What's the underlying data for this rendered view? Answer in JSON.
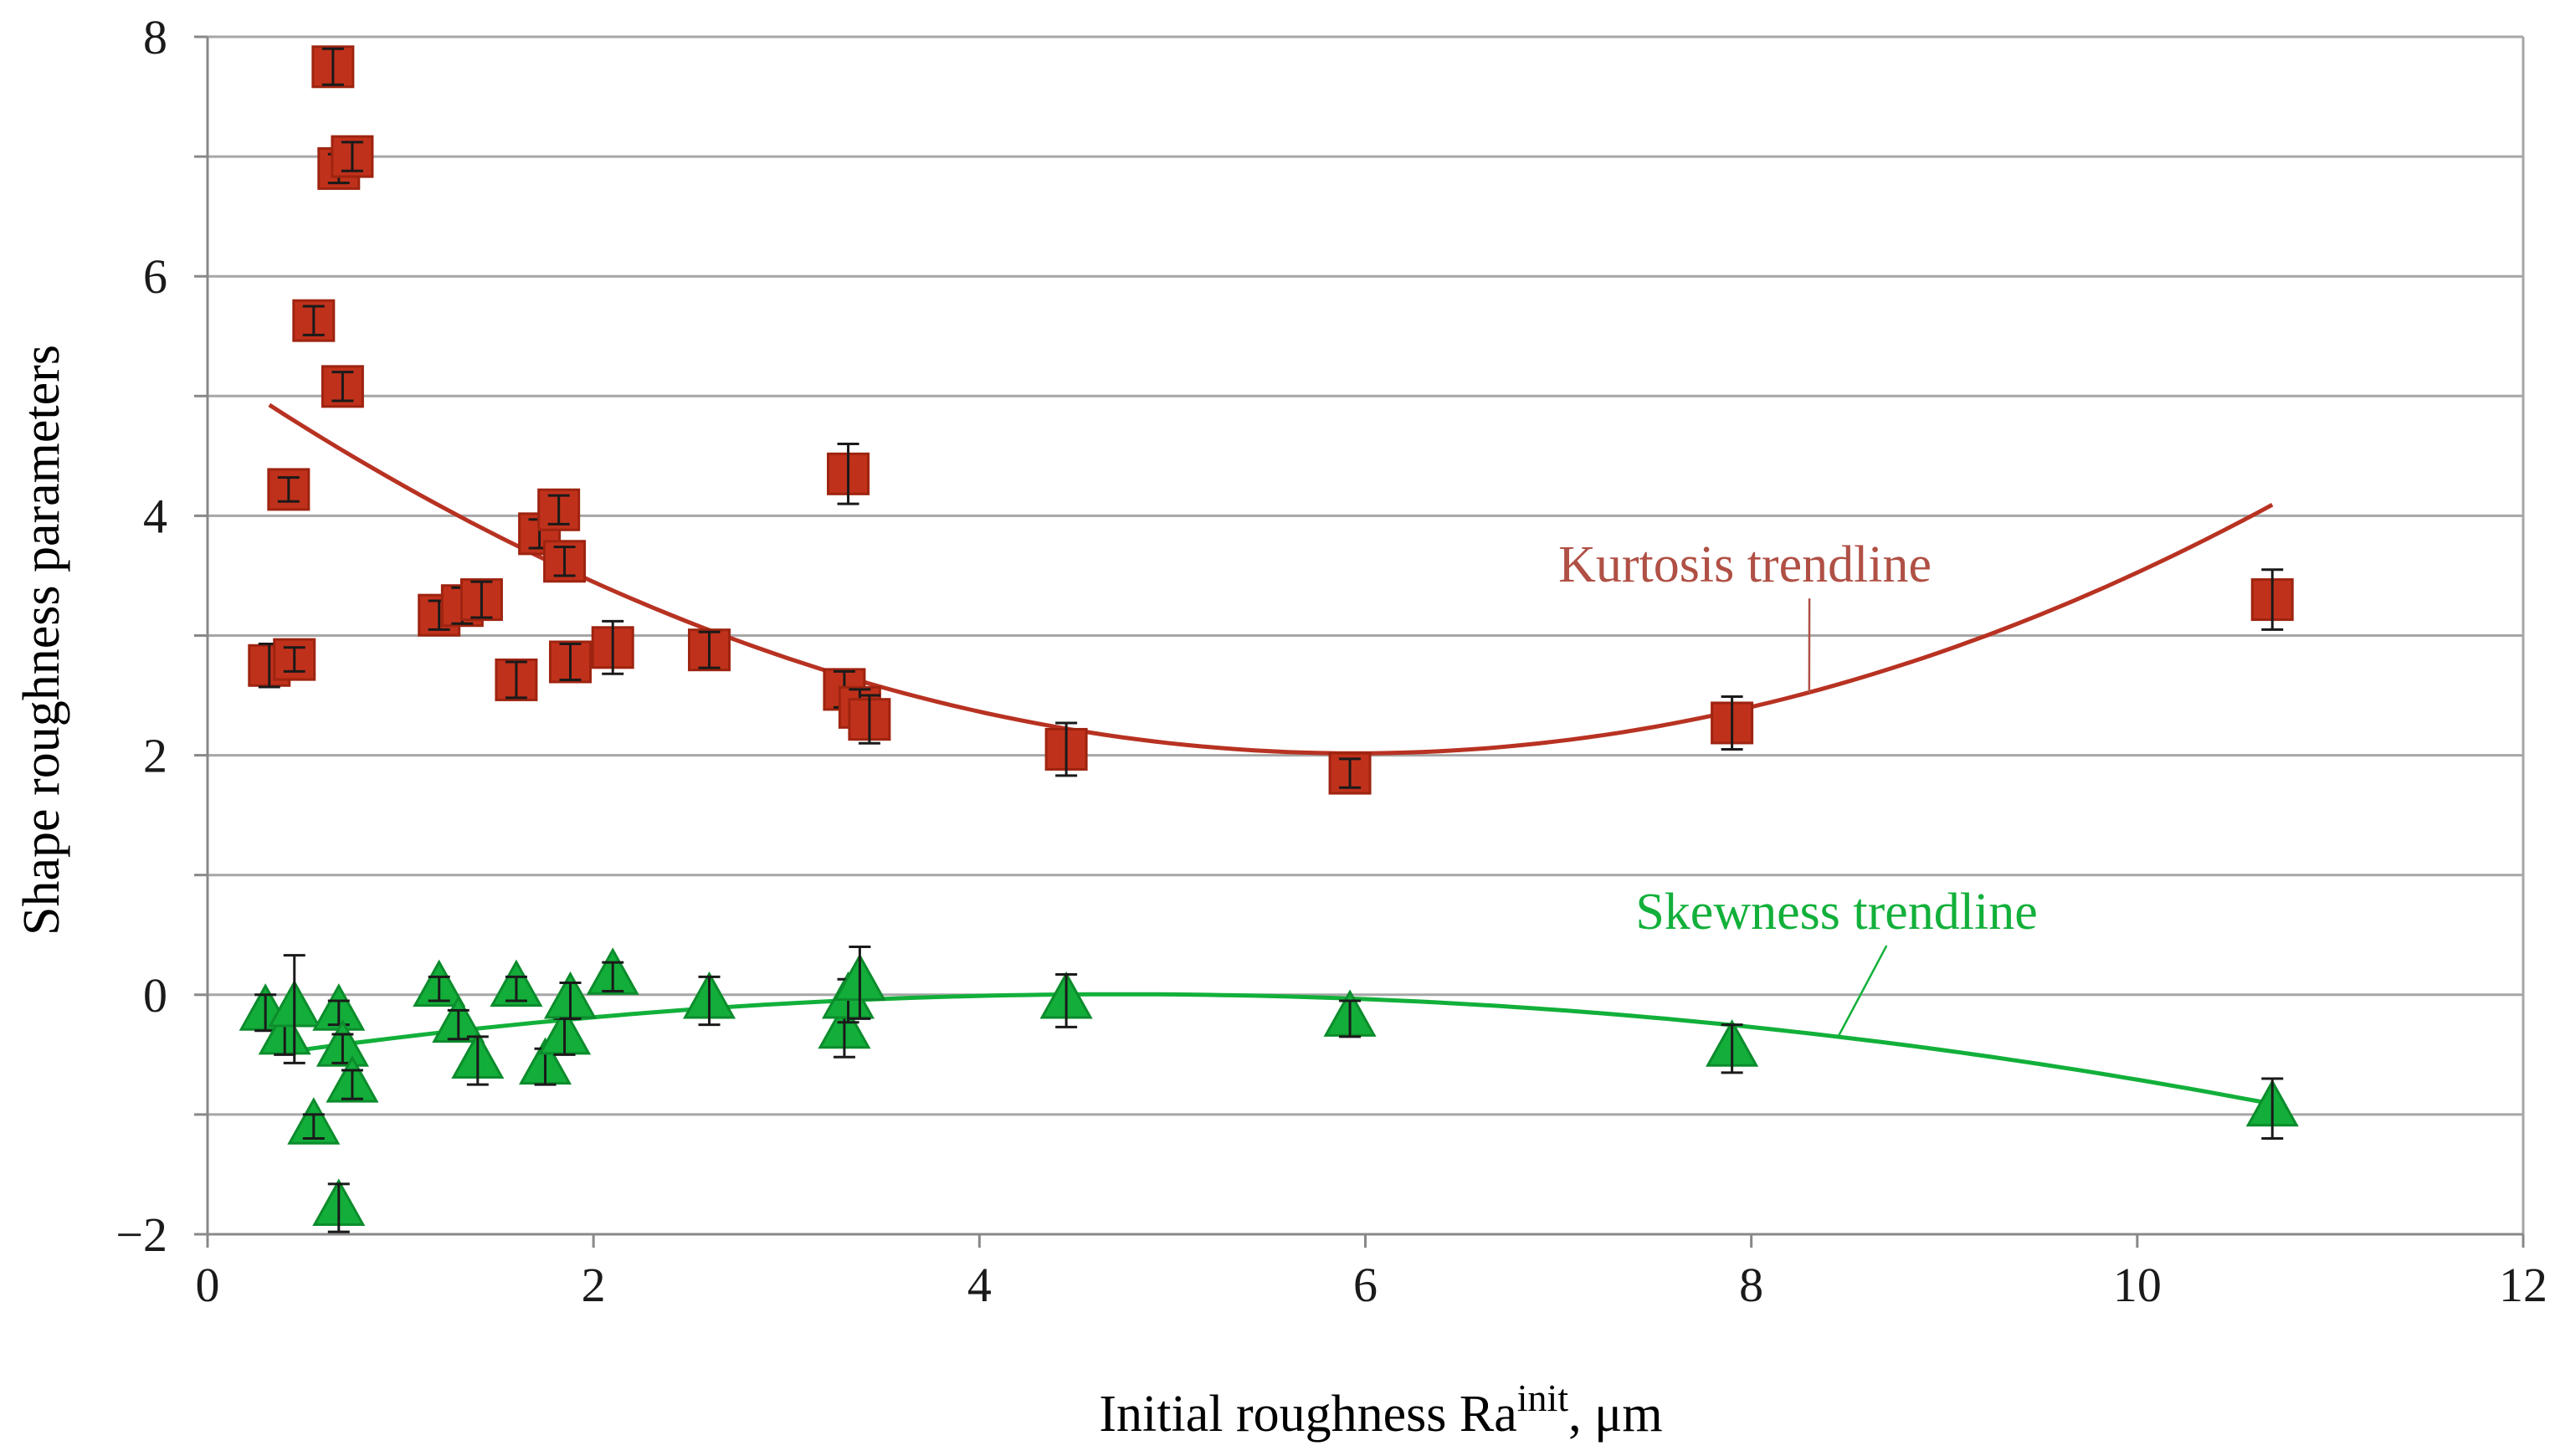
{
  "colors": {
    "kurtosis": "#c0311b",
    "kurtosis_edge": "#9e2410",
    "kurtosis_trend": "#b83222",
    "kurtosis_label": "#b05045",
    "skewness": "#13ad3a",
    "skewness_edge": "#0c8c2c",
    "skewness_trend": "#12b03a",
    "grid": "#a6a6a6",
    "axis": "#888888",
    "errorbar": "#1a1a1a",
    "text": "#1a1a1a"
  },
  "chart_data": {
    "type": "scatter",
    "xlabel_main": "Initial roughness  Ra",
    "xlabel_sup": "init",
    "xlabel_unit": ", μm",
    "ylabel": "Shape roughness parameters",
    "xlim": [
      0,
      12
    ],
    "ylim": [
      -2,
      8
    ],
    "grid": true,
    "x_ticks": [
      0,
      2,
      4,
      6,
      8,
      10,
      12
    ],
    "x_tick_labels": [
      "0",
      "2",
      "4",
      "6",
      "8",
      "10",
      "12"
    ],
    "y_gridlines": [
      -2,
      -1,
      0,
      1,
      2,
      3,
      4,
      5,
      6,
      7,
      8
    ],
    "y_ticks": [
      -2,
      0,
      2,
      4,
      6,
      8
    ],
    "y_tick_labels": [
      "−2",
      "0",
      "2",
      "4",
      "6",
      "8"
    ],
    "series": [
      {
        "name": "Kurtosis",
        "marker": "square",
        "points": [
          {
            "x": 0.32,
            "y": 2.75,
            "err": 0.18
          },
          {
            "x": 0.45,
            "y": 2.8,
            "err": 0.1
          },
          {
            "x": 0.42,
            "y": 4.22,
            "err": 0.1
          },
          {
            "x": 0.55,
            "y": 5.63,
            "err": 0.12
          },
          {
            "x": 0.65,
            "y": 7.75,
            "err": 0.15
          },
          {
            "x": 0.68,
            "y": 6.9,
            "err": 0.12
          },
          {
            "x": 0.75,
            "y": 7.0,
            "err": 0.12
          },
          {
            "x": 0.7,
            "y": 5.08,
            "err": 0.12
          },
          {
            "x": 1.2,
            "y": 3.17,
            "err": 0.12
          },
          {
            "x": 1.32,
            "y": 3.25,
            "err": 0.15
          },
          {
            "x": 1.42,
            "y": 3.3,
            "err": 0.15
          },
          {
            "x": 1.6,
            "y": 2.63,
            "err": 0.15
          },
          {
            "x": 1.72,
            "y": 3.85,
            "err": 0.12
          },
          {
            "x": 1.82,
            "y": 4.05,
            "err": 0.12
          },
          {
            "x": 1.85,
            "y": 3.62,
            "err": 0.12
          },
          {
            "x": 1.88,
            "y": 2.78,
            "err": 0.15
          },
          {
            "x": 2.1,
            "y": 2.9,
            "err": 0.22
          },
          {
            "x": 2.6,
            "y": 2.88,
            "err": 0.15
          },
          {
            "x": 3.3,
            "y": 2.55,
            "err": 0.15
          },
          {
            "x": 3.32,
            "y": 4.35,
            "err": 0.25
          },
          {
            "x": 3.38,
            "y": 2.4,
            "err": 0.15
          },
          {
            "x": 3.43,
            "y": 2.3,
            "err": 0.2
          },
          {
            "x": 4.45,
            "y": 2.05,
            "err": 0.22
          },
          {
            "x": 5.92,
            "y": 1.85,
            "err": 0.12
          },
          {
            "x": 7.9,
            "y": 2.27,
            "err": 0.22
          },
          {
            "x": 10.7,
            "y": 3.3,
            "err": 0.25
          }
        ]
      },
      {
        "name": "Skewness",
        "marker": "triangle",
        "points": [
          {
            "x": 0.3,
            "y": -0.15,
            "err": 0.15
          },
          {
            "x": 0.4,
            "y": -0.35,
            "err": 0.15
          },
          {
            "x": 0.45,
            "y": -0.12,
            "err": 0.45
          },
          {
            "x": 0.55,
            "y": -1.1,
            "err": 0.1
          },
          {
            "x": 0.68,
            "y": -0.15,
            "err": 0.1
          },
          {
            "x": 0.7,
            "y": -0.45,
            "err": 0.12
          },
          {
            "x": 0.75,
            "y": -0.75,
            "err": 0.12
          },
          {
            "x": 0.68,
            "y": -1.78,
            "err": 0.2
          },
          {
            "x": 1.2,
            "y": 0.05,
            "err": 0.1
          },
          {
            "x": 1.3,
            "y": -0.25,
            "err": 0.12
          },
          {
            "x": 1.4,
            "y": -0.55,
            "err": 0.2
          },
          {
            "x": 1.6,
            "y": 0.05,
            "err": 0.1
          },
          {
            "x": 1.75,
            "y": -0.6,
            "err": 0.15
          },
          {
            "x": 1.85,
            "y": -0.35,
            "err": 0.15
          },
          {
            "x": 1.88,
            "y": -0.05,
            "err": 0.15
          },
          {
            "x": 2.1,
            "y": 0.15,
            "err": 0.12
          },
          {
            "x": 2.6,
            "y": -0.05,
            "err": 0.2
          },
          {
            "x": 3.3,
            "y": -0.3,
            "err": 0.22
          },
          {
            "x": 3.32,
            "y": -0.05,
            "err": 0.18
          },
          {
            "x": 3.38,
            "y": 0.1,
            "err": 0.3
          },
          {
            "x": 4.45,
            "y": -0.05,
            "err": 0.22
          },
          {
            "x": 5.92,
            "y": -0.2,
            "err": 0.15
          },
          {
            "x": 7.9,
            "y": -0.45,
            "err": 0.2
          },
          {
            "x": 10.7,
            "y": -0.95,
            "err": 0.25
          }
        ]
      }
    ],
    "trendlines": [
      {
        "name": "Kurtosis trendline",
        "label": "Kurtosis trendline",
        "x_range": [
          0.32,
          10.7
        ],
        "coef": [
          5.266,
          -1.093,
          0.0919
        ]
      },
      {
        "name": "Skewness trendline",
        "label": "Skewness trendline",
        "x_range": [
          0.5,
          10.7
        ],
        "coef": [
          -0.573,
          0.2439,
          -0.02575
        ]
      }
    ],
    "annotations": [
      {
        "text": "Kurtosis trendline",
        "x": 7.0,
        "y": 3.45,
        "pointer_to_x": 8.3,
        "color_key": "kurtosis_label"
      },
      {
        "text": "Skewness trendline",
        "x": 7.4,
        "y": 0.55,
        "pointer_to_x": 8.45,
        "color_key": "skewness_trend"
      }
    ]
  }
}
